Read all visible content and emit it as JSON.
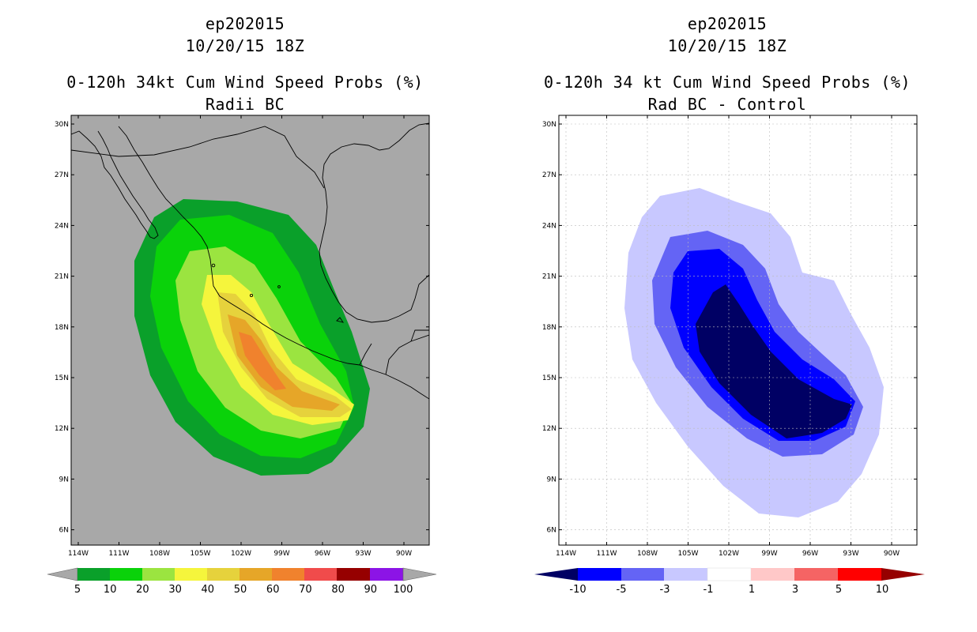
{
  "colors": {
    "land_left": "#a8a8a8",
    "p5": "#0aa02a",
    "p10": "#0ad20a",
    "p20": "#9be440",
    "p30": "#f5f53c",
    "p40": "#e6d23c",
    "p50": "#e6a628",
    "p60": "#f0822d",
    "p70": "#f04b4b",
    "p80": "#960000",
    "p90": "#8c14e6",
    "n10": "#000064",
    "n5": "#0000ff",
    "n3": "#6464f5",
    "n1": "#c8c8ff",
    "z0": "#ffffff",
    "q1": "#ffc8c8",
    "q3": "#f56464",
    "q5": "#ff0000",
    "q10": "#960000"
  },
  "left": {
    "storm": "ep202015",
    "datetime": "10/20/15 18Z",
    "product": "0-120h 34kt Cum Wind Speed Probs (%)",
    "subtitle": "Radii BC",
    "colorbar_labels": [
      "5",
      "10",
      "20",
      "30",
      "40",
      "50",
      "60",
      "70",
      "80",
      "90",
      "100"
    ]
  },
  "right": {
    "storm": "ep202015",
    "datetime": "10/20/15 18Z",
    "product": "0-120h 34 kt Cum Wind Speed Probs (%)",
    "subtitle": "Rad BC - Control",
    "colorbar_labels": [
      "-10",
      "-5",
      "-3",
      "-1",
      "1",
      "3",
      "5",
      "10"
    ]
  },
  "axes": {
    "lat_labels": [
      "30N",
      "27N",
      "24N",
      "21N",
      "18N",
      "15N",
      "12N",
      "9N",
      "6N"
    ],
    "lon_labels": [
      "114W",
      "111W",
      "108W",
      "105W",
      "102W",
      "99W",
      "96W",
      "93W",
      "90W"
    ]
  }
}
